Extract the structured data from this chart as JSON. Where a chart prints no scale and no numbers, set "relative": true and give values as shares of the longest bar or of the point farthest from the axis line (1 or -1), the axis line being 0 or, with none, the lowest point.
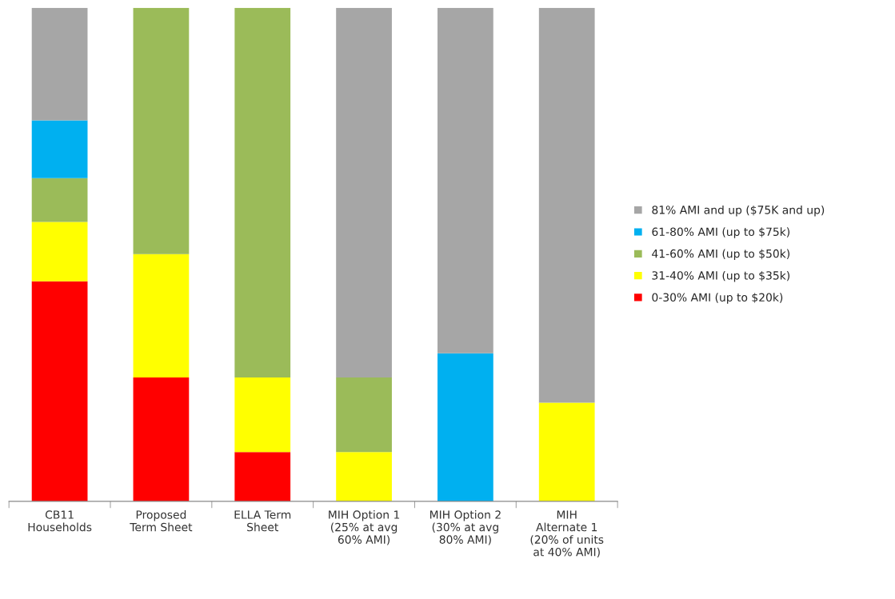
{
  "chart_data": {
    "type": "bar",
    "stacked": true,
    "relative": true,
    "legend": "right",
    "grid": false,
    "categories": [
      "CB11\nHouseholds",
      "Proposed\nTerm Sheet",
      "ELLA Term\nSheet",
      "MIH Option 1\n(25% at avg\n60% AMI)",
      "MIH Option 2\n(30% at avg\n80% AMI)",
      "MIH\nAlternate 1\n(20% of units\nat 40% AMI)"
    ],
    "series": [
      {
        "name": "0-30% AMI (up to $20k)",
        "color": "#ff0000",
        "values": [
          0.446,
          0.251,
          0.1,
          null,
          null,
          null
        ]
      },
      {
        "name": "31-40% AMI (up to $35k)",
        "color": "#ffff00",
        "values": [
          0.12,
          0.25,
          0.151,
          0.1,
          null,
          0.2
        ]
      },
      {
        "name": "41-60% AMI (up to $50k)",
        "color": "#9bbb59",
        "values": [
          0.089,
          0.499,
          0.749,
          0.151,
          null,
          null
        ]
      },
      {
        "name": "61-80% AMI (up to $75k)",
        "color": "#00b0f0",
        "values": [
          0.117,
          null,
          null,
          null,
          0.3,
          null
        ]
      },
      {
        "name": "81% AMI and up ($75K and up)",
        "color": "#a6a6a6",
        "values": [
          0.228,
          null,
          null,
          0.749,
          0.7,
          0.8
        ]
      }
    ]
  }
}
